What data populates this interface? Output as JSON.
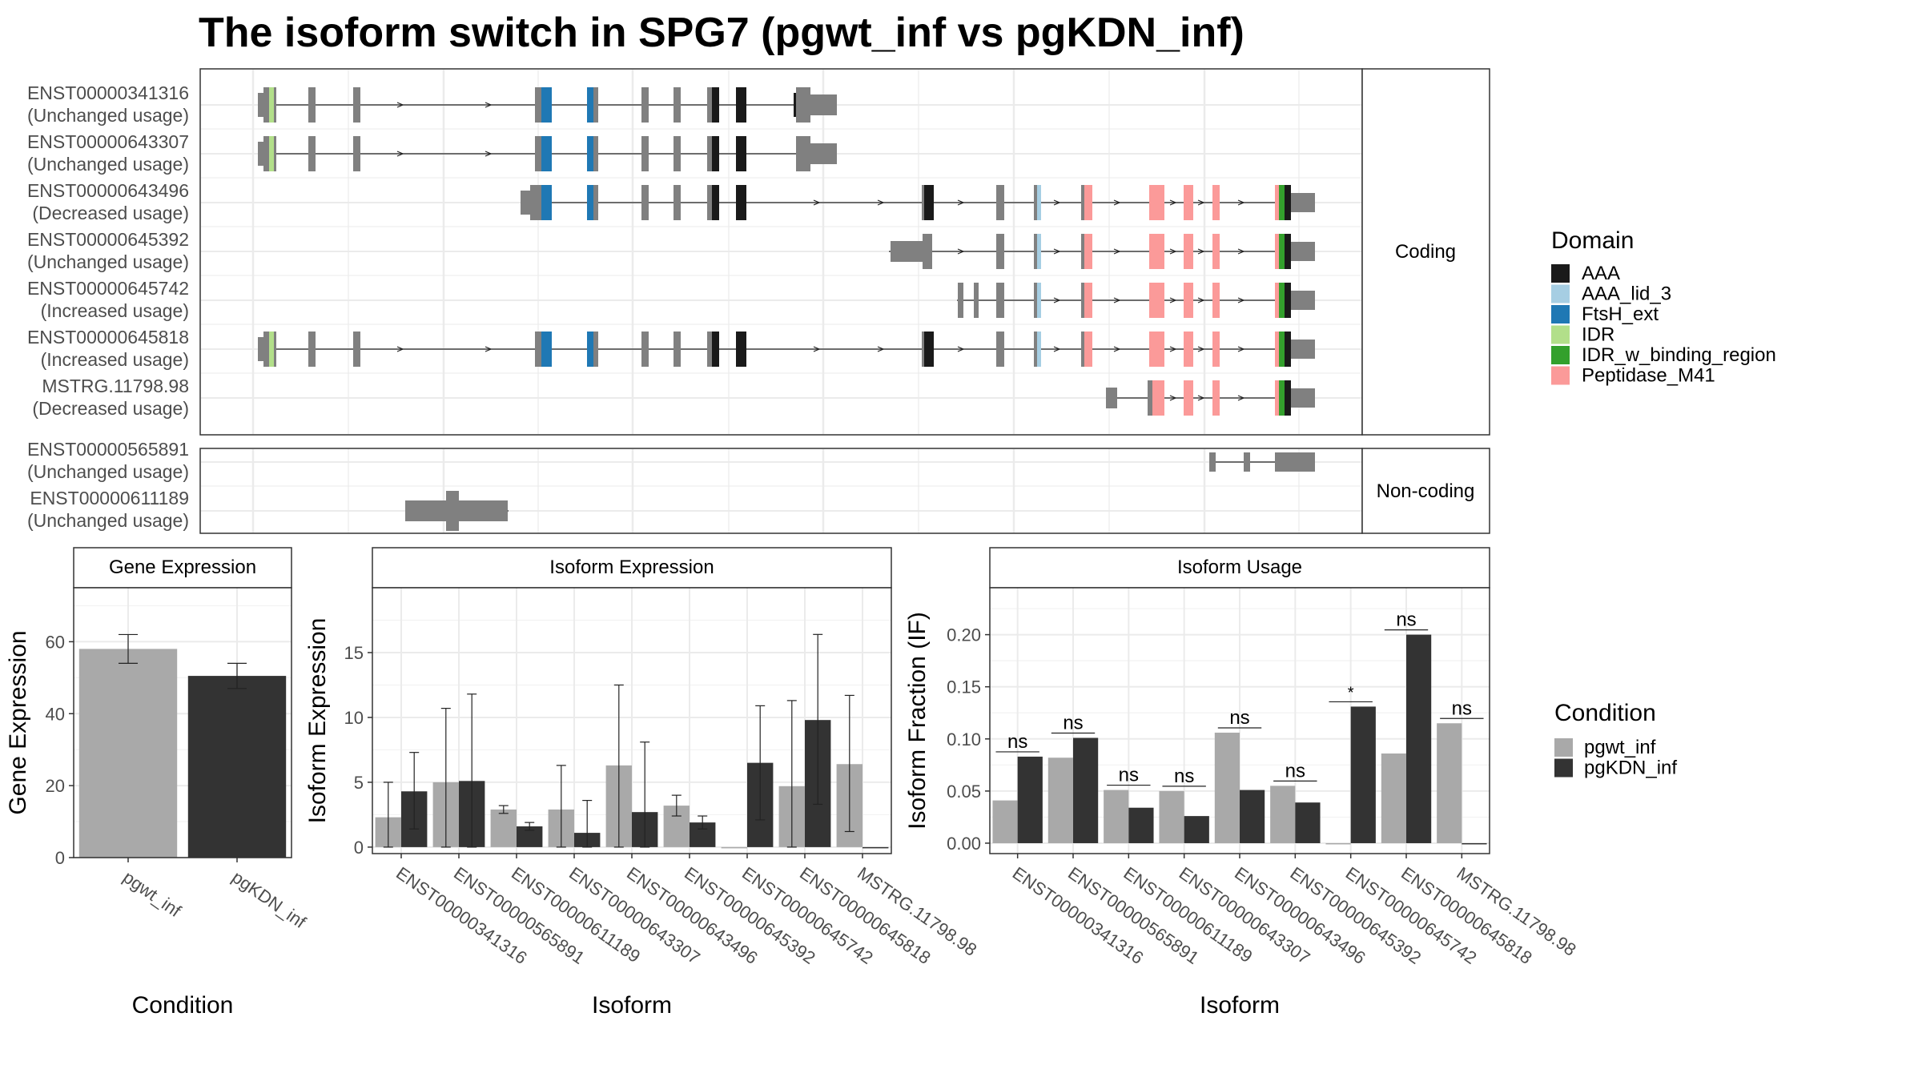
{
  "title": "The isoform switch in SPG7 (pgwt_inf vs pgKDN_inf)",
  "colors": {
    "pgwt_inf": "#a9a9a9",
    "pgKDN_inf": "#333333",
    "exon": "#808080"
  },
  "structure": {
    "coding_label": "Coding",
    "noncoding_label": "Non-coding",
    "coding": [
      {
        "id": "ENST00000341316",
        "usage": "(Unchanged usage)"
      },
      {
        "id": "ENST00000643307",
        "usage": "(Unchanged usage)"
      },
      {
        "id": "ENST00000643496",
        "usage": "(Decreased usage)"
      },
      {
        "id": "ENST00000645392",
        "usage": "(Unchanged usage)"
      },
      {
        "id": "ENST00000645742",
        "usage": "(Increased usage)"
      },
      {
        "id": "ENST00000645818",
        "usage": "(Increased usage)"
      },
      {
        "id": "MSTRG.11798.98",
        "usage": "(Decreased usage)"
      }
    ],
    "noncoding": [
      {
        "id": "ENST00000565891",
        "usage": "(Unchanged usage)"
      },
      {
        "id": "ENST00000611189",
        "usage": "(Unchanged usage)"
      }
    ]
  },
  "domain_legend": {
    "title": "Domain",
    "items": [
      {
        "label": "AAA",
        "color": "#1a1a1a"
      },
      {
        "label": "AAA_lid_3",
        "color": "#a6cee3"
      },
      {
        "label": "FtsH_ext",
        "color": "#1f78b4"
      },
      {
        "label": "IDR",
        "color": "#b2df8a"
      },
      {
        "label": "IDR_w_binding_region",
        "color": "#33a02c"
      },
      {
        "label": "Peptidase_M41",
        "color": "#fb9a99"
      }
    ]
  },
  "condition_legend": {
    "title": "Condition",
    "items": [
      {
        "label": "pgwt_inf",
        "color": "#a9a9a9"
      },
      {
        "label": "pgKDN_inf",
        "color": "#333333"
      }
    ]
  },
  "chart_data": [
    {
      "type": "bar",
      "title": "Gene Expression",
      "xlabel": "Condition",
      "ylabel": "Gene Expression",
      "ylim": [
        0,
        75
      ],
      "yticks": [
        0,
        20,
        40,
        60
      ],
      "categories": [
        "pgwt_inf",
        "pgKDN_inf"
      ],
      "values": [
        58,
        50.5
      ],
      "errors": [
        [
          54,
          62
        ],
        [
          47,
          54
        ]
      ]
    },
    {
      "type": "bar",
      "title": "Isoform Expression",
      "xlabel": "Isoform",
      "ylabel": "Isoform Expression",
      "ylim": [
        -0.5,
        20
      ],
      "yticks": [
        0,
        5,
        10,
        15
      ],
      "categories": [
        "ENST00000341316",
        "ENST00000565891",
        "ENST00000611189",
        "ENST00000643307",
        "ENST00000643496",
        "ENST00000645392",
        "ENST00000645742",
        "ENST00000645818",
        "MSTRG.11798.98"
      ],
      "series": [
        {
          "name": "pgwt_inf",
          "values": [
            2.3,
            5.0,
            2.9,
            2.9,
            6.3,
            3.2,
            0.0,
            4.7,
            6.4
          ],
          "errors": [
            [
              0,
              5.0
            ],
            [
              0,
              10.7
            ],
            [
              2.6,
              3.2
            ],
            [
              0,
              6.3
            ],
            [
              0,
              12.5
            ],
            [
              2.4,
              4.0
            ],
            [
              0,
              0
            ],
            [
              0,
              11.3
            ],
            [
              1.2,
              11.7
            ]
          ]
        },
        {
          "name": "pgKDN_inf",
          "values": [
            4.3,
            5.1,
            1.6,
            1.1,
            2.7,
            1.9,
            6.5,
            9.8,
            0.0
          ],
          "errors": [
            [
              1.4,
              7.3
            ],
            [
              0,
              11.8
            ],
            [
              1.3,
              1.9
            ],
            [
              0,
              3.6
            ],
            [
              0,
              8.1
            ],
            [
              1.4,
              2.4
            ],
            [
              2.1,
              10.9
            ],
            [
              3.3,
              16.4
            ],
            [
              0,
              0
            ]
          ]
        }
      ]
    },
    {
      "type": "bar",
      "title": "Isoform Usage",
      "xlabel": "Isoform",
      "ylabel": "Isoform Fraction (IF)",
      "ylim": [
        -0.01,
        0.245
      ],
      "yticks": [
        "0.00",
        "0.05",
        "0.10",
        "0.15",
        "0.20"
      ],
      "categories": [
        "ENST00000341316",
        "ENST00000565891",
        "ENST00000611189",
        "ENST00000643307",
        "ENST00000643496",
        "ENST00000645392",
        "ENST00000645742",
        "ENST00000645818",
        "MSTRG.11798.98"
      ],
      "series": [
        {
          "name": "pgwt_inf",
          "values": [
            0.041,
            0.082,
            0.051,
            0.05,
            0.106,
            0.055,
            0.0,
            0.086,
            0.115
          ]
        },
        {
          "name": "pgKDN_inf",
          "values": [
            0.083,
            0.101,
            0.034,
            0.026,
            0.051,
            0.039,
            0.131,
            0.2,
            0.0
          ]
        }
      ],
      "annotations": [
        "ns",
        "ns",
        "ns",
        "ns",
        "ns",
        "ns",
        "*",
        "ns",
        "ns"
      ]
    }
  ]
}
